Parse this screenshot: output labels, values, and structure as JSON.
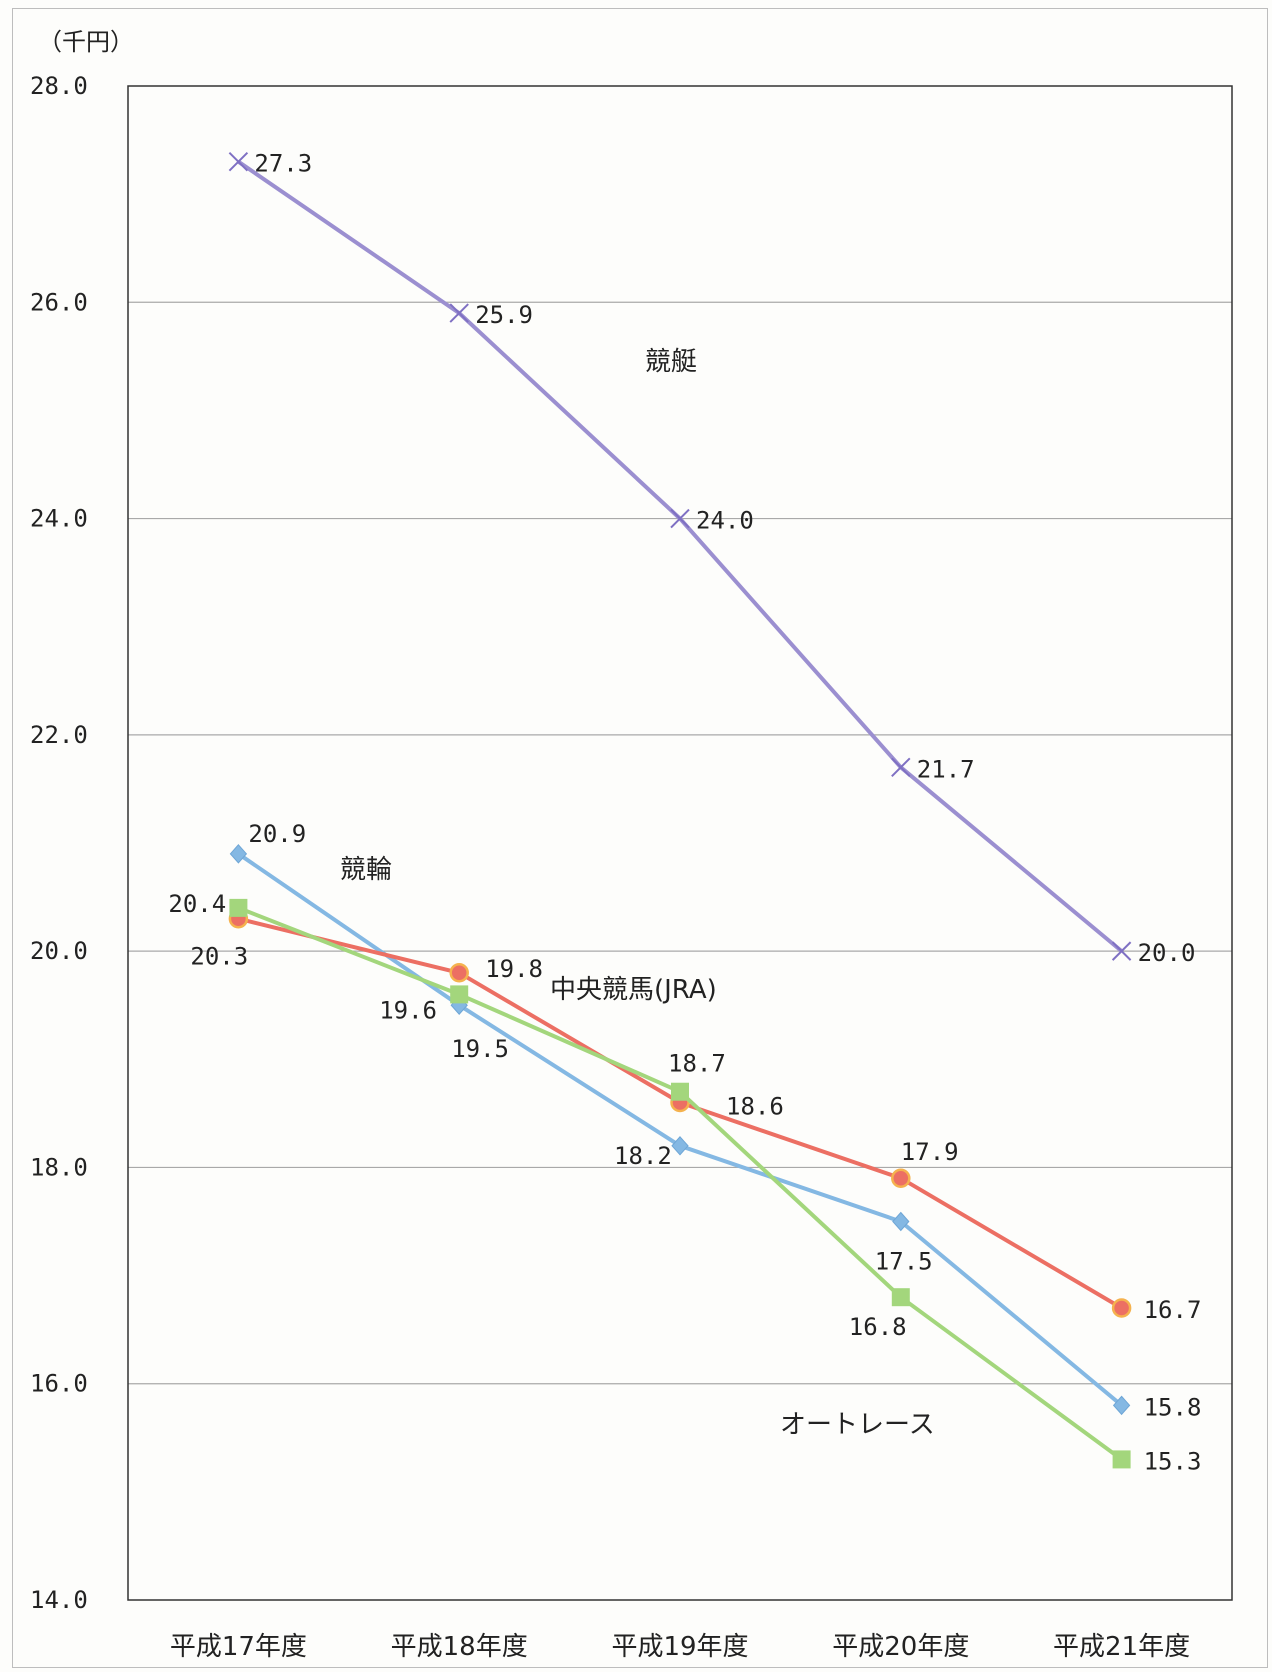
{
  "chart_data": {
    "type": "line",
    "title": "",
    "xlabel": "",
    "ylabel": "（千円）",
    "ylim": [
      14.0,
      28.0
    ],
    "yticks": [
      "14.0",
      "16.0",
      "18.0",
      "20.0",
      "22.0",
      "24.0",
      "26.0",
      "28.0"
    ],
    "grid": true,
    "legend": "none",
    "categories": [
      "平成17年度",
      "平成18年度",
      "平成19年度",
      "平成20年度",
      "平成21年度"
    ],
    "series": [
      {
        "name": "競艇",
        "color": "#9b8fd0",
        "marker": "x",
        "values": [
          27.3,
          25.9,
          24.0,
          21.7,
          20.0
        ],
        "labels": [
          "27.3",
          "25.9",
          "24.0",
          "21.7",
          "20.0"
        ]
      },
      {
        "name": "競輪",
        "color": "#84b8e3",
        "marker": "diamond",
        "values": [
          20.9,
          19.5,
          18.2,
          17.5,
          15.8
        ],
        "labels": [
          "20.9",
          "19.5",
          "18.2",
          "17.5",
          "15.8"
        ]
      },
      {
        "name": "中央競馬(JRA)",
        "color": "#ec6f63",
        "marker": "circle",
        "values": [
          20.3,
          19.8,
          18.6,
          17.9,
          16.7
        ],
        "labels": [
          "20.3",
          "19.8",
          "18.6",
          "17.9",
          "16.7"
        ]
      },
      {
        "name": "オートレース",
        "color": "#a3d67c",
        "marker": "square",
        "values": [
          20.4,
          19.6,
          18.7,
          16.8,
          15.3
        ],
        "labels": [
          "20.4",
          "19.6",
          "18.7",
          "16.8",
          "15.3"
        ]
      }
    ]
  }
}
